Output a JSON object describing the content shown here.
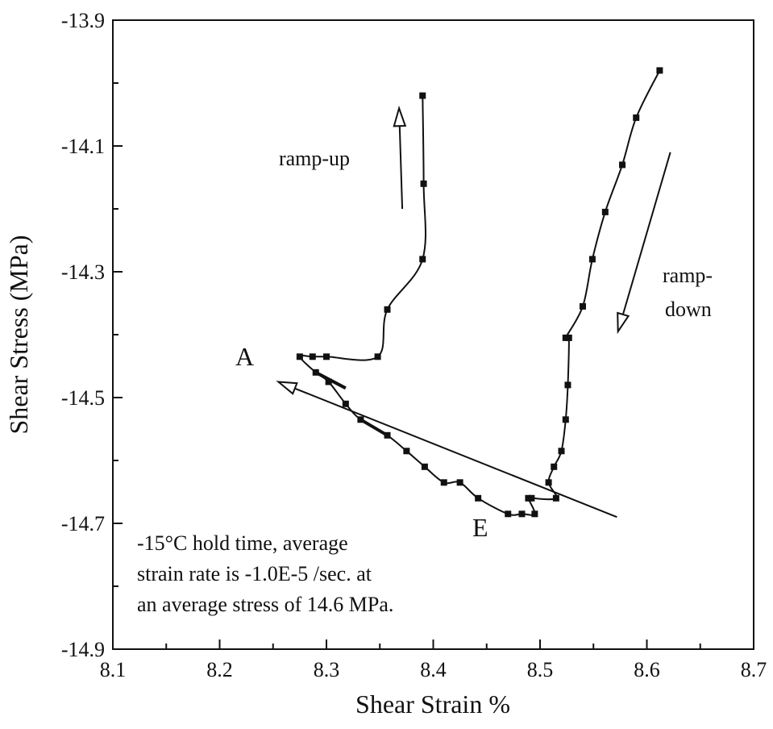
{
  "chart_data": {
    "type": "scatter",
    "title": "",
    "xlabel": "Shear Strain %",
    "ylabel": "Shear Stress (MPa)",
    "xlim": [
      8.1,
      8.7
    ],
    "ylim": [
      -14.9,
      -13.9
    ],
    "xticks": [
      "8.1",
      "8.2",
      "8.3",
      "8.4",
      "8.5",
      "8.6",
      "8.7"
    ],
    "yticks": [
      "-13.9",
      "-14.1",
      "-14.3",
      "-14.5",
      "-14.7",
      "-14.9"
    ],
    "grid": false,
    "legend": "none",
    "series": [
      {
        "x": [
          8.39,
          8.391,
          8.39,
          8.357,
          8.348,
          8.3,
          8.287,
          8.275,
          8.29,
          8.302,
          8.318,
          8.332,
          8.357,
          8.375,
          8.392,
          8.41,
          8.425,
          8.442,
          8.47,
          8.483,
          8.495,
          8.489,
          8.492,
          8.515,
          8.508,
          8.513,
          8.52,
          8.524,
          8.526,
          8.527,
          8.524,
          8.54,
          8.549,
          8.561,
          8.577,
          8.59,
          8.612
        ],
        "y": [
          -14.02,
          -14.16,
          -14.28,
          -14.36,
          -14.435,
          -14.435,
          -14.435,
          -14.435,
          -14.46,
          -14.475,
          -14.51,
          -14.535,
          -14.56,
          -14.585,
          -14.61,
          -14.635,
          -14.635,
          -14.66,
          -14.685,
          -14.685,
          -14.685,
          -14.66,
          -14.66,
          -14.66,
          -14.635,
          -14.61,
          -14.585,
          -14.535,
          -14.48,
          -14.405,
          -14.405,
          -14.355,
          -14.28,
          -14.205,
          -14.13,
          -14.055,
          -13.98
        ]
      }
    ],
    "segments": [
      {
        "x": [
          8.29,
          8.318
        ],
        "y": [
          -14.46,
          -14.485
        ]
      },
      {
        "x": [
          8.332,
          8.357
        ],
        "y": [
          -14.535,
          -14.56
        ]
      }
    ],
    "arrows": [
      {
        "from": [
          8.371,
          -14.2
        ],
        "to": [
          8.368,
          -14.04
        ]
      },
      {
        "from": [
          8.622,
          -14.11
        ],
        "to": [
          8.573,
          -14.395
        ]
      },
      {
        "from": [
          8.572,
          -14.69
        ],
        "to": [
          8.255,
          -14.475
        ]
      }
    ],
    "annotations": {
      "ramp_up": "ramp-up",
      "ramp_down_1": "ramp-",
      "ramp_down_2": "down",
      "point_a": "A",
      "point_e": "E",
      "note_1": "-15°C hold time, average",
      "note_2": "strain rate is -1.0E-5 /sec. at",
      "note_3": "an average stress of 14.6 MPa."
    }
  }
}
